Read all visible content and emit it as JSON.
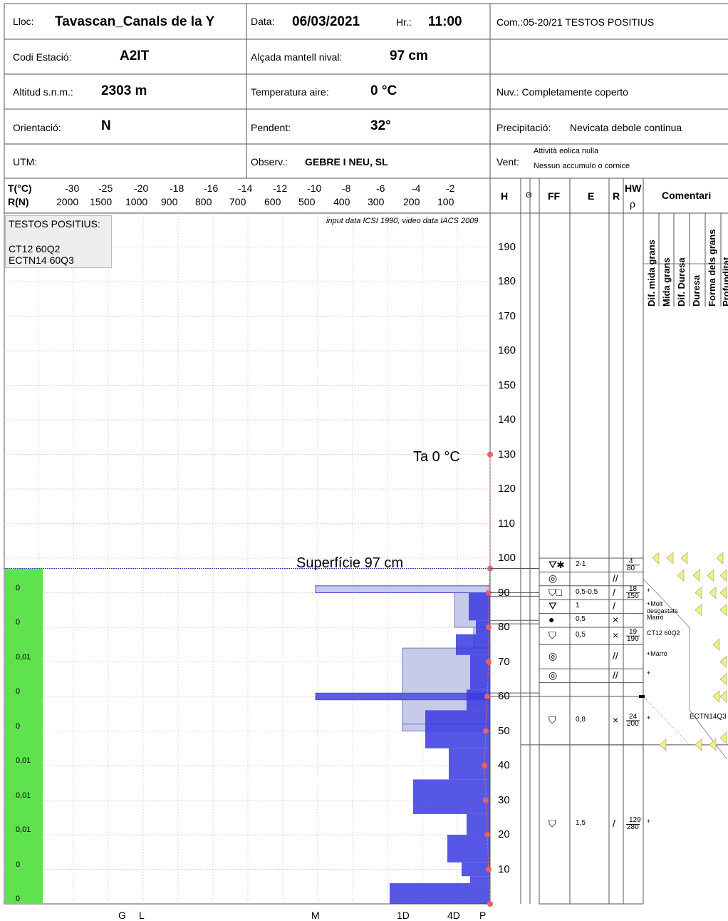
{
  "header": {
    "lloc_label": "Lloc:",
    "lloc": "Tavascan_Canals de la Y",
    "data_label": "Data:",
    "data": "06/03/2021",
    "hr_label": "Hr.:",
    "hr": "11:00",
    "com": "Com.:05-20/21 TESTOS POSITIUS",
    "codi_label": "Codi Estació:",
    "codi": "A2IT",
    "alcada_label": "Alçada mantell nival:",
    "alcada": "97 cm",
    "altitud_label": "Altitud s.n.m.:",
    "altitud": "2303 m",
    "temp_label": "Temperatura aire:",
    "temp": "0 °C",
    "nuv": "Nuv.: Completamente coperto",
    "orient_label": "Orientació:",
    "orient": "N",
    "pendent_label": "Pendent:",
    "pendent": "32°",
    "precip_label": "Precipitació:",
    "precip": "Nevicata debole continua",
    "utm_label": "UTM:",
    "observ_label": "Observ.:",
    "observ": "GEBRE I NEU, SL",
    "vent_label": "Vent:",
    "vent1": "Attività eolica nulla",
    "vent2": "Nessun accumulo o cornice"
  },
  "scale": {
    "t_label": "T(°C)",
    "r_label": "R(N)",
    "t_values": [
      "-30",
      "-25",
      "-20",
      "-18",
      "-16",
      "-14",
      "-12",
      "-10",
      "-8",
      "-6",
      "-4",
      "-2"
    ],
    "r_values": [
      "2000",
      "1500",
      "1000",
      "900",
      "800",
      "700",
      "600",
      "500",
      "400",
      "300",
      "200",
      "100"
    ]
  },
  "columns": {
    "h": "H",
    "theta": "Θ",
    "ff": "FF",
    "e": "E",
    "r": "R",
    "hw": "HW",
    "rho": "ρ",
    "comentari": "Comentari"
  },
  "comment_headers": [
    "Dif. mida grans",
    "Mida grans",
    "Dif. Duresa",
    "Duresa",
    "Forma dels grans",
    "Profunditat"
  ],
  "tests_box": {
    "title": "TESTOS POSITIUS:",
    "line1": "CT12 60Q2",
    "line2": "ECTN14 60Q3"
  },
  "source_note": "input data ICSI 1990, video data IACS 2009",
  "ta_label": "Ta  0 °C",
  "surface_label": "Superfície  97 cm",
  "h_ticks": [
    "190",
    "180",
    "170",
    "160",
    "150",
    "140",
    "130",
    "120",
    "110",
    "100",
    "90",
    "80",
    "70",
    "60",
    "50",
    "40",
    "30",
    "20",
    "10"
  ],
  "green_values": [
    "0",
    "0",
    "0,01",
    "0",
    "0",
    "0,01",
    "0,01",
    "0,01",
    "0",
    "0"
  ],
  "hardness_axis": [
    "G",
    "L",
    "M",
    "1D",
    "4D",
    "P"
  ],
  "layers": [
    {
      "ff": "⛛✱",
      "e": "2-1",
      "r": "",
      "hw": "4",
      "rho": "80",
      "comment": ""
    },
    {
      "ff": "◎",
      "e": "",
      "r": "//",
      "hw": "",
      "rho": "",
      "comment": ""
    },
    {
      "ff": "⛉□",
      "e": "0,5-0,5",
      "r": "/",
      "hw": "18",
      "rho": "150",
      "comment": "+"
    },
    {
      "ff": "⛛",
      "e": "1",
      "r": "/",
      "hw": "",
      "rho": "",
      "comment": "+Molt desgastats"
    },
    {
      "ff": "●",
      "e": "0,5",
      "r": "×",
      "hw": "",
      "rho": "",
      "comment": "Marró"
    },
    {
      "ff": "⛉",
      "e": "0,5",
      "r": "×",
      "hw": "19",
      "rho": "190",
      "comment": "CT12 60Q2"
    },
    {
      "ff": "◎",
      "e": "",
      "r": "//",
      "hw": "",
      "rho": "",
      "comment": "+Marró"
    },
    {
      "ff": "◎",
      "e": "",
      "r": "//",
      "hw": "",
      "rho": "",
      "comment": "+"
    },
    {
      "ff": "⛉",
      "e": "0,8",
      "r": "×",
      "hw": "24",
      "rho": "200",
      "comment": "+"
    },
    {
      "ff": "⛉",
      "e": "1,5",
      "r": "/",
      "hw": "129",
      "rho": "280",
      "comment": "+"
    }
  ],
  "ectn_label": "ECTN14Q3",
  "colors": {
    "green": "#5ee34f",
    "blue_dark": "#3a3ae0",
    "blue_light": "#c5cbe9",
    "red": "#e8606a",
    "yellow": "#f1f07a",
    "grid": "#c9c9c9"
  }
}
